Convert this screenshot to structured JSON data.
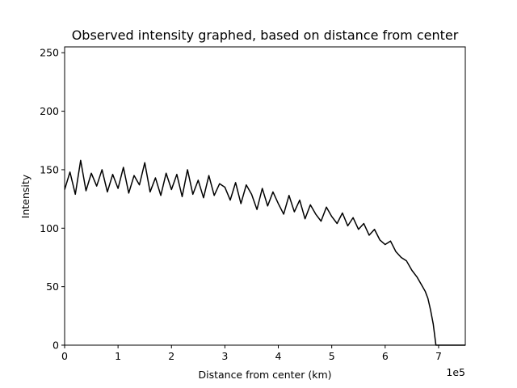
{
  "chart_data": {
    "type": "line",
    "title": "Observed intensity graphed, based on distance from center",
    "xlabel": "Distance from center (km)",
    "ylabel": "Intensity",
    "xlim": [
      0,
      750000
    ],
    "ylim": [
      0,
      255
    ],
    "x_offset_text": "1e5",
    "x_ticks": [
      0,
      100000,
      200000,
      300000,
      400000,
      500000,
      600000,
      700000
    ],
    "x_tick_labels": [
      "0",
      "1",
      "2",
      "3",
      "4",
      "5",
      "6",
      "7"
    ],
    "y_ticks": [
      0,
      50,
      100,
      150,
      200,
      250
    ],
    "y_tick_labels": [
      "0",
      "50",
      "100",
      "150",
      "200",
      "250"
    ],
    "grid": false,
    "series": [
      {
        "name": "Intensity",
        "color": "#000000",
        "x": [
          0,
          10000,
          20000,
          30000,
          40000,
          50000,
          60000,
          70000,
          80000,
          90000,
          100000,
          110000,
          120000,
          130000,
          140000,
          150000,
          160000,
          170000,
          180000,
          190000,
          200000,
          210000,
          220000,
          230000,
          240000,
          250000,
          260000,
          270000,
          280000,
          290000,
          300000,
          310000,
          320000,
          330000,
          340000,
          350000,
          360000,
          370000,
          380000,
          390000,
          400000,
          410000,
          420000,
          430000,
          440000,
          450000,
          460000,
          470000,
          480000,
          490000,
          500000,
          510000,
          520000,
          530000,
          540000,
          550000,
          560000,
          570000,
          580000,
          590000,
          600000,
          610000,
          620000,
          630000,
          640000,
          650000,
          660000,
          670000,
          675000,
          680000,
          685000,
          690000,
          695000,
          700000,
          710000,
          720000,
          730000,
          740000,
          750000
        ],
        "y": [
          133,
          148,
          129,
          158,
          132,
          147,
          136,
          150,
          131,
          146,
          134,
          152,
          130,
          145,
          137,
          156,
          131,
          143,
          128,
          147,
          133,
          146,
          127,
          150,
          129,
          141,
          126,
          145,
          128,
          138,
          135,
          124,
          139,
          121,
          137,
          129,
          116,
          134,
          119,
          131,
          121,
          112,
          128,
          114,
          124,
          108,
          120,
          112,
          106,
          118,
          110,
          104,
          113,
          102,
          109,
          99,
          104,
          94,
          99,
          90,
          86,
          89,
          80,
          75,
          72,
          64,
          58,
          50,
          46,
          40,
          30,
          18,
          0,
          0,
          0,
          0,
          0,
          0,
          0
        ]
      }
    ]
  }
}
